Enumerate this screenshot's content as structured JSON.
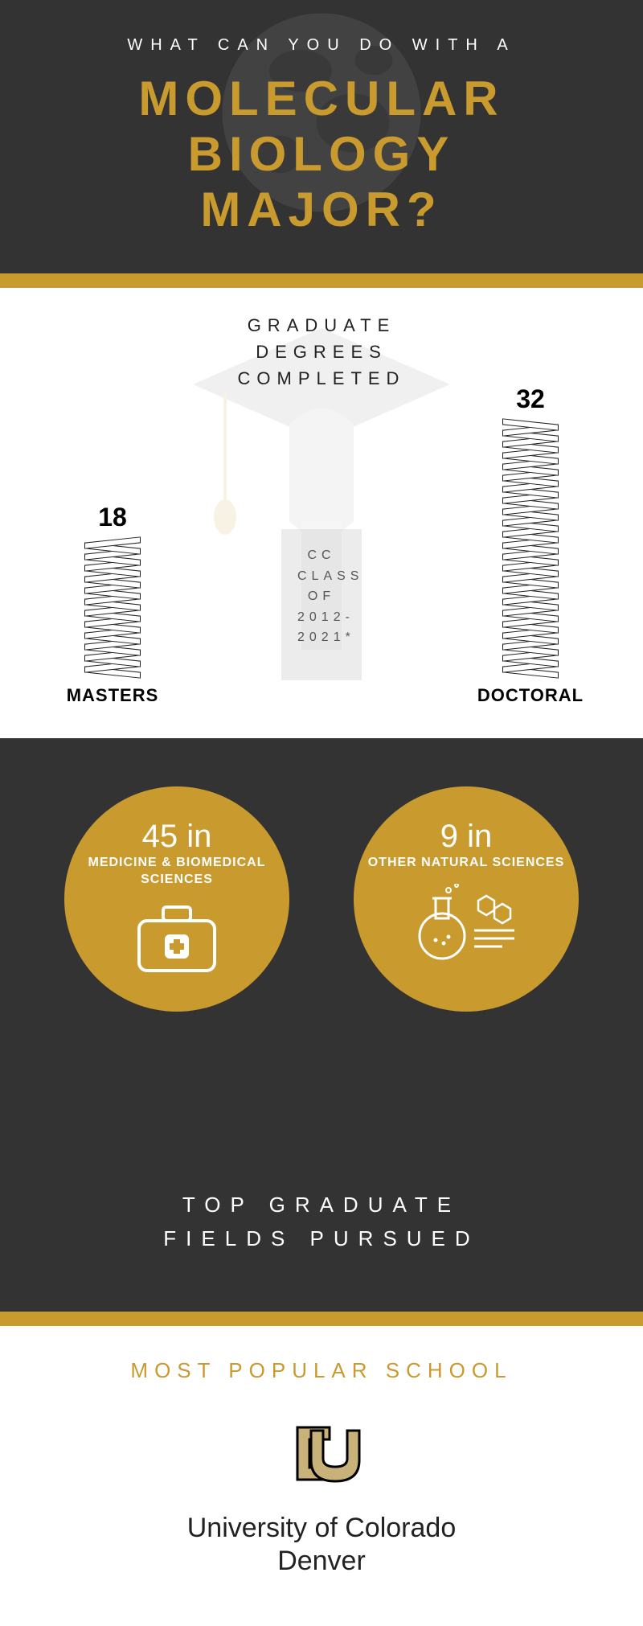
{
  "header": {
    "subtitle": "WHAT CAN YOU DO WITH A",
    "title_line1": "MOLECULAR",
    "title_line2": "BIOLOGY",
    "title_line3": "MAJOR?",
    "bg_color": "#333333",
    "title_color": "#c99a2e",
    "subtitle_color": "#ffffff"
  },
  "accent_color": "#c99a2e",
  "grad_section": {
    "title_line1": "GRADUATE",
    "title_line2": "DEGREES",
    "title_line3": "COMPLETED",
    "class_label": "CC CLASS OF 2012-2021*",
    "masters": {
      "count": 18,
      "label": "MASTERS",
      "stack_height": 24
    },
    "doctoral": {
      "count": 32,
      "label": "DOCTORAL",
      "stack_height": 45
    }
  },
  "fields_section": {
    "bg_color": "#333333",
    "circles": [
      {
        "count": "45 in",
        "label": "MEDICINE & BIOMEDICAL SCIENCES",
        "color": "#c99a2e",
        "icon": "medical"
      },
      {
        "count": "9 in",
        "label": "OTHER NATURAL SCIENCES",
        "color": "#c99a2e",
        "icon": "science"
      }
    ],
    "title_line1": "TOP GRADUATE",
    "title_line2": "FIELDS PURSUED"
  },
  "popular_section": {
    "title": "MOST POPULAR SCHOOL",
    "school_line1": "University of Colorado",
    "school_line2": "Denver"
  }
}
